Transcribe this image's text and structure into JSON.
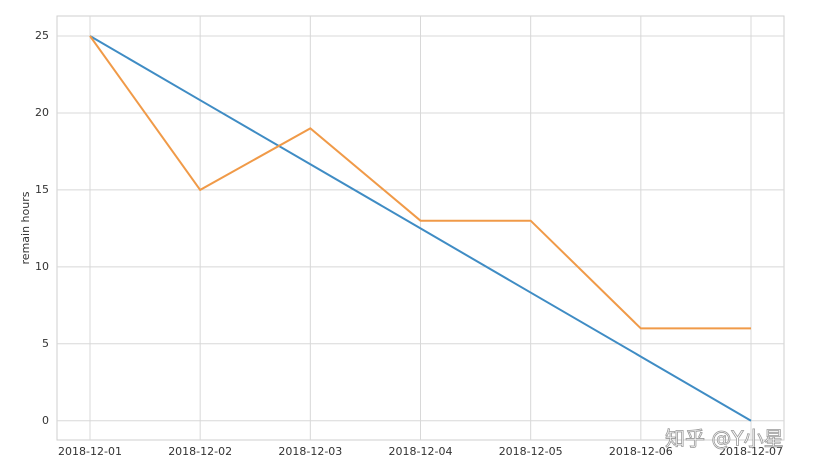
{
  "chart_data": {
    "type": "line",
    "ylabel": "remain hours",
    "categories": [
      "2018-12-01",
      "2018-12-02",
      "2018-12-03",
      "2018-12-04",
      "2018-12-05",
      "2018-12-06",
      "2018-12-07"
    ],
    "series": [
      {
        "color": "#3f8cc4",
        "values": [
          25,
          20.83,
          16.67,
          12.5,
          8.33,
          4.17,
          0
        ]
      },
      {
        "color": "#f09a48",
        "values": [
          25,
          15,
          19,
          13,
          13,
          6,
          6
        ]
      }
    ],
    "ylim": [
      -1.25,
      26.3
    ],
    "yticks": [
      0,
      5,
      10,
      15,
      20,
      25
    ],
    "grid": true
  },
  "watermark": "知乎 @Y小星"
}
